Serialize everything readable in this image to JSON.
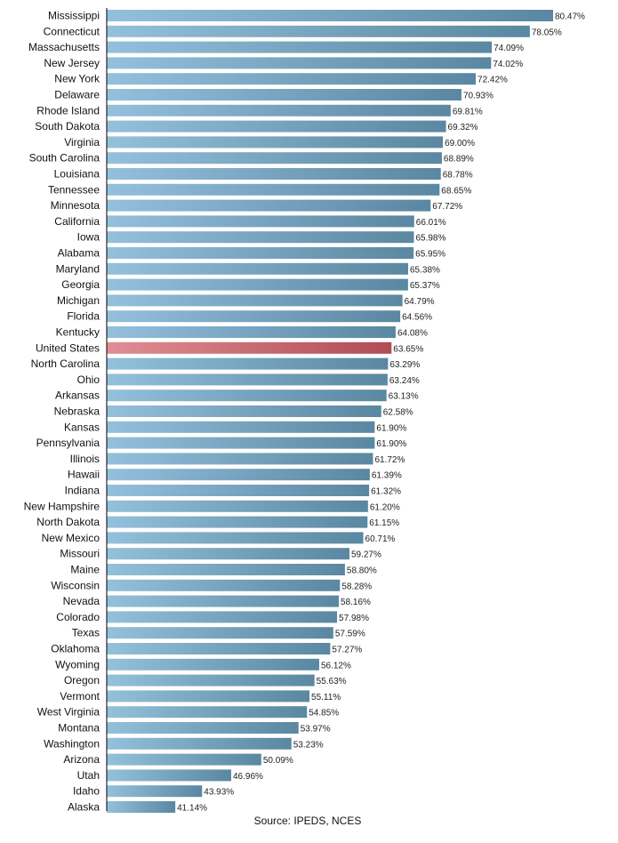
{
  "chart_data": {
    "type": "bar",
    "orientation": "horizontal",
    "categories": [
      "Mississippi",
      "Connecticut",
      "Massachusetts",
      "New Jersey",
      "New York",
      "Delaware",
      "Rhode Island",
      "South Dakota",
      "Virginia",
      "South Carolina",
      "Louisiana",
      "Tennessee",
      "Minnesota",
      "California",
      "Iowa",
      "Alabama",
      "Maryland",
      "Georgia",
      "Michigan",
      "Florida",
      "Kentucky",
      "United States",
      "North Carolina",
      "Ohio",
      "Arkansas",
      "Nebraska",
      "Kansas",
      "Pennsylvania",
      "Illinois",
      "Hawaii",
      "Indiana",
      "New Hampshire",
      "North Dakota",
      "New Mexico",
      "Missouri",
      "Maine",
      "Wisconsin",
      "Nevada",
      "Colorado",
      "Texas",
      "Oklahoma",
      "Wyoming",
      "Oregon",
      "Vermont",
      "West Virginia",
      "Montana",
      "Washington",
      "Arizona",
      "Utah",
      "Idaho",
      "Alaska"
    ],
    "values": [
      80.47,
      78.05,
      74.09,
      74.02,
      72.42,
      70.93,
      69.81,
      69.32,
      69.0,
      68.89,
      68.78,
      68.65,
      67.72,
      66.01,
      65.98,
      65.95,
      65.38,
      65.37,
      64.79,
      64.56,
      64.08,
      63.65,
      63.29,
      63.24,
      63.13,
      62.58,
      61.9,
      61.9,
      61.72,
      61.39,
      61.32,
      61.2,
      61.15,
      60.71,
      59.27,
      58.8,
      58.28,
      58.16,
      57.98,
      57.59,
      57.27,
      56.12,
      55.63,
      55.11,
      54.85,
      53.97,
      53.23,
      50.09,
      46.96,
      43.93,
      41.14
    ],
    "value_labels": [
      "80.47%",
      "78.05%",
      "74.09%",
      "74.02%",
      "72.42%",
      "70.93%",
      "69.81%",
      "69.32%",
      "69.00%",
      "68.89%",
      "68.78%",
      "68.65%",
      "67.72%",
      "66.01%",
      "65.98%",
      "65.95%",
      "65.38%",
      "65.37%",
      "64.79%",
      "64.56%",
      "64.08%",
      "63.65%",
      "63.29%",
      "63.24%",
      "63.13%",
      "62.58%",
      "61.90%",
      "61.90%",
      "61.72%",
      "61.39%",
      "61.32%",
      "61.20%",
      "61.15%",
      "60.71%",
      "59.27%",
      "58.80%",
      "58.28%",
      "58.16%",
      "57.98%",
      "57.59%",
      "57.27%",
      "56.12%",
      "55.63%",
      "55.11%",
      "54.85%",
      "53.97%",
      "53.23%",
      "50.09%",
      "46.96%",
      "43.93%",
      "41.14%"
    ],
    "highlight": "United States",
    "xlim": [
      34,
      80.47
    ],
    "title": "",
    "xlabel": "",
    "ylabel": "",
    "grid": false,
    "legend": "none",
    "colors": {
      "bar_light": "#93c1dc",
      "bar_dark": "#5a87a1",
      "highlight_light": "#e18d95",
      "highlight_dark": "#b04c54",
      "axis": "#000000"
    }
  },
  "source": "Source: IPEDS, NCES"
}
